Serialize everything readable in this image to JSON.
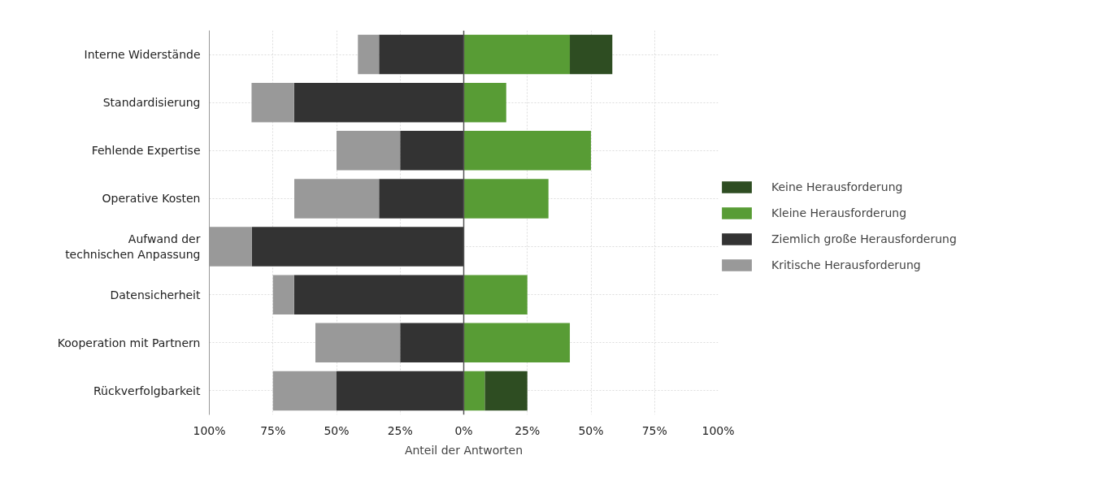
{
  "chart_data": {
    "type": "bar",
    "orientation": "horizontal",
    "stacked": true,
    "categories": [
      "Interne Widerstände",
      "Standardisierung",
      "Fehlende Expertise",
      "Operative Kosten",
      "Aufwand der\ntechnischen Anpassung",
      "Datensicherheit",
      "Kooperation mit Partnern",
      "Rückverfolgbarkeit"
    ],
    "series": [
      {
        "name": "Keine Herausforderung",
        "color": "#2e4d22",
        "values": [
          16.7,
          0,
          0,
          0,
          0,
          0,
          0,
          16.7
        ]
      },
      {
        "name": "Kleine Herausforderung",
        "color": "#589c35",
        "values": [
          41.7,
          16.7,
          50,
          33.3,
          0,
          25,
          41.7,
          8.3
        ]
      },
      {
        "name": "Ziemlich große Herausforderung",
        "color": "#333333",
        "values": [
          -33.3,
          -66.7,
          -25,
          -33.3,
          -83.3,
          -66.7,
          -25,
          -50
        ]
      },
      {
        "name": "Kritische Herausforderung",
        "color": "#999999",
        "values": [
          -8.3,
          -16.7,
          -25,
          -33.3,
          -16.7,
          -8.3,
          -33.3,
          -25
        ]
      }
    ],
    "xlabel": "Anteil der Antworten",
    "xlim": [
      -100,
      100
    ],
    "xticks": [
      {
        "value": -100,
        "label": "100%"
      },
      {
        "value": -75,
        "label": "75%"
      },
      {
        "value": -50,
        "label": "50%"
      },
      {
        "value": -25,
        "label": "25%"
      },
      {
        "value": 0,
        "label": "0%"
      },
      {
        "value": 25,
        "label": "25%"
      },
      {
        "value": 50,
        "label": "50%"
      },
      {
        "value": 75,
        "label": "75%"
      },
      {
        "value": 100,
        "label": "100%"
      }
    ],
    "ref_lines": [
      {
        "axis": "x",
        "value": 0,
        "color": "#555555"
      }
    ],
    "grid": true,
    "legend": "right"
  }
}
